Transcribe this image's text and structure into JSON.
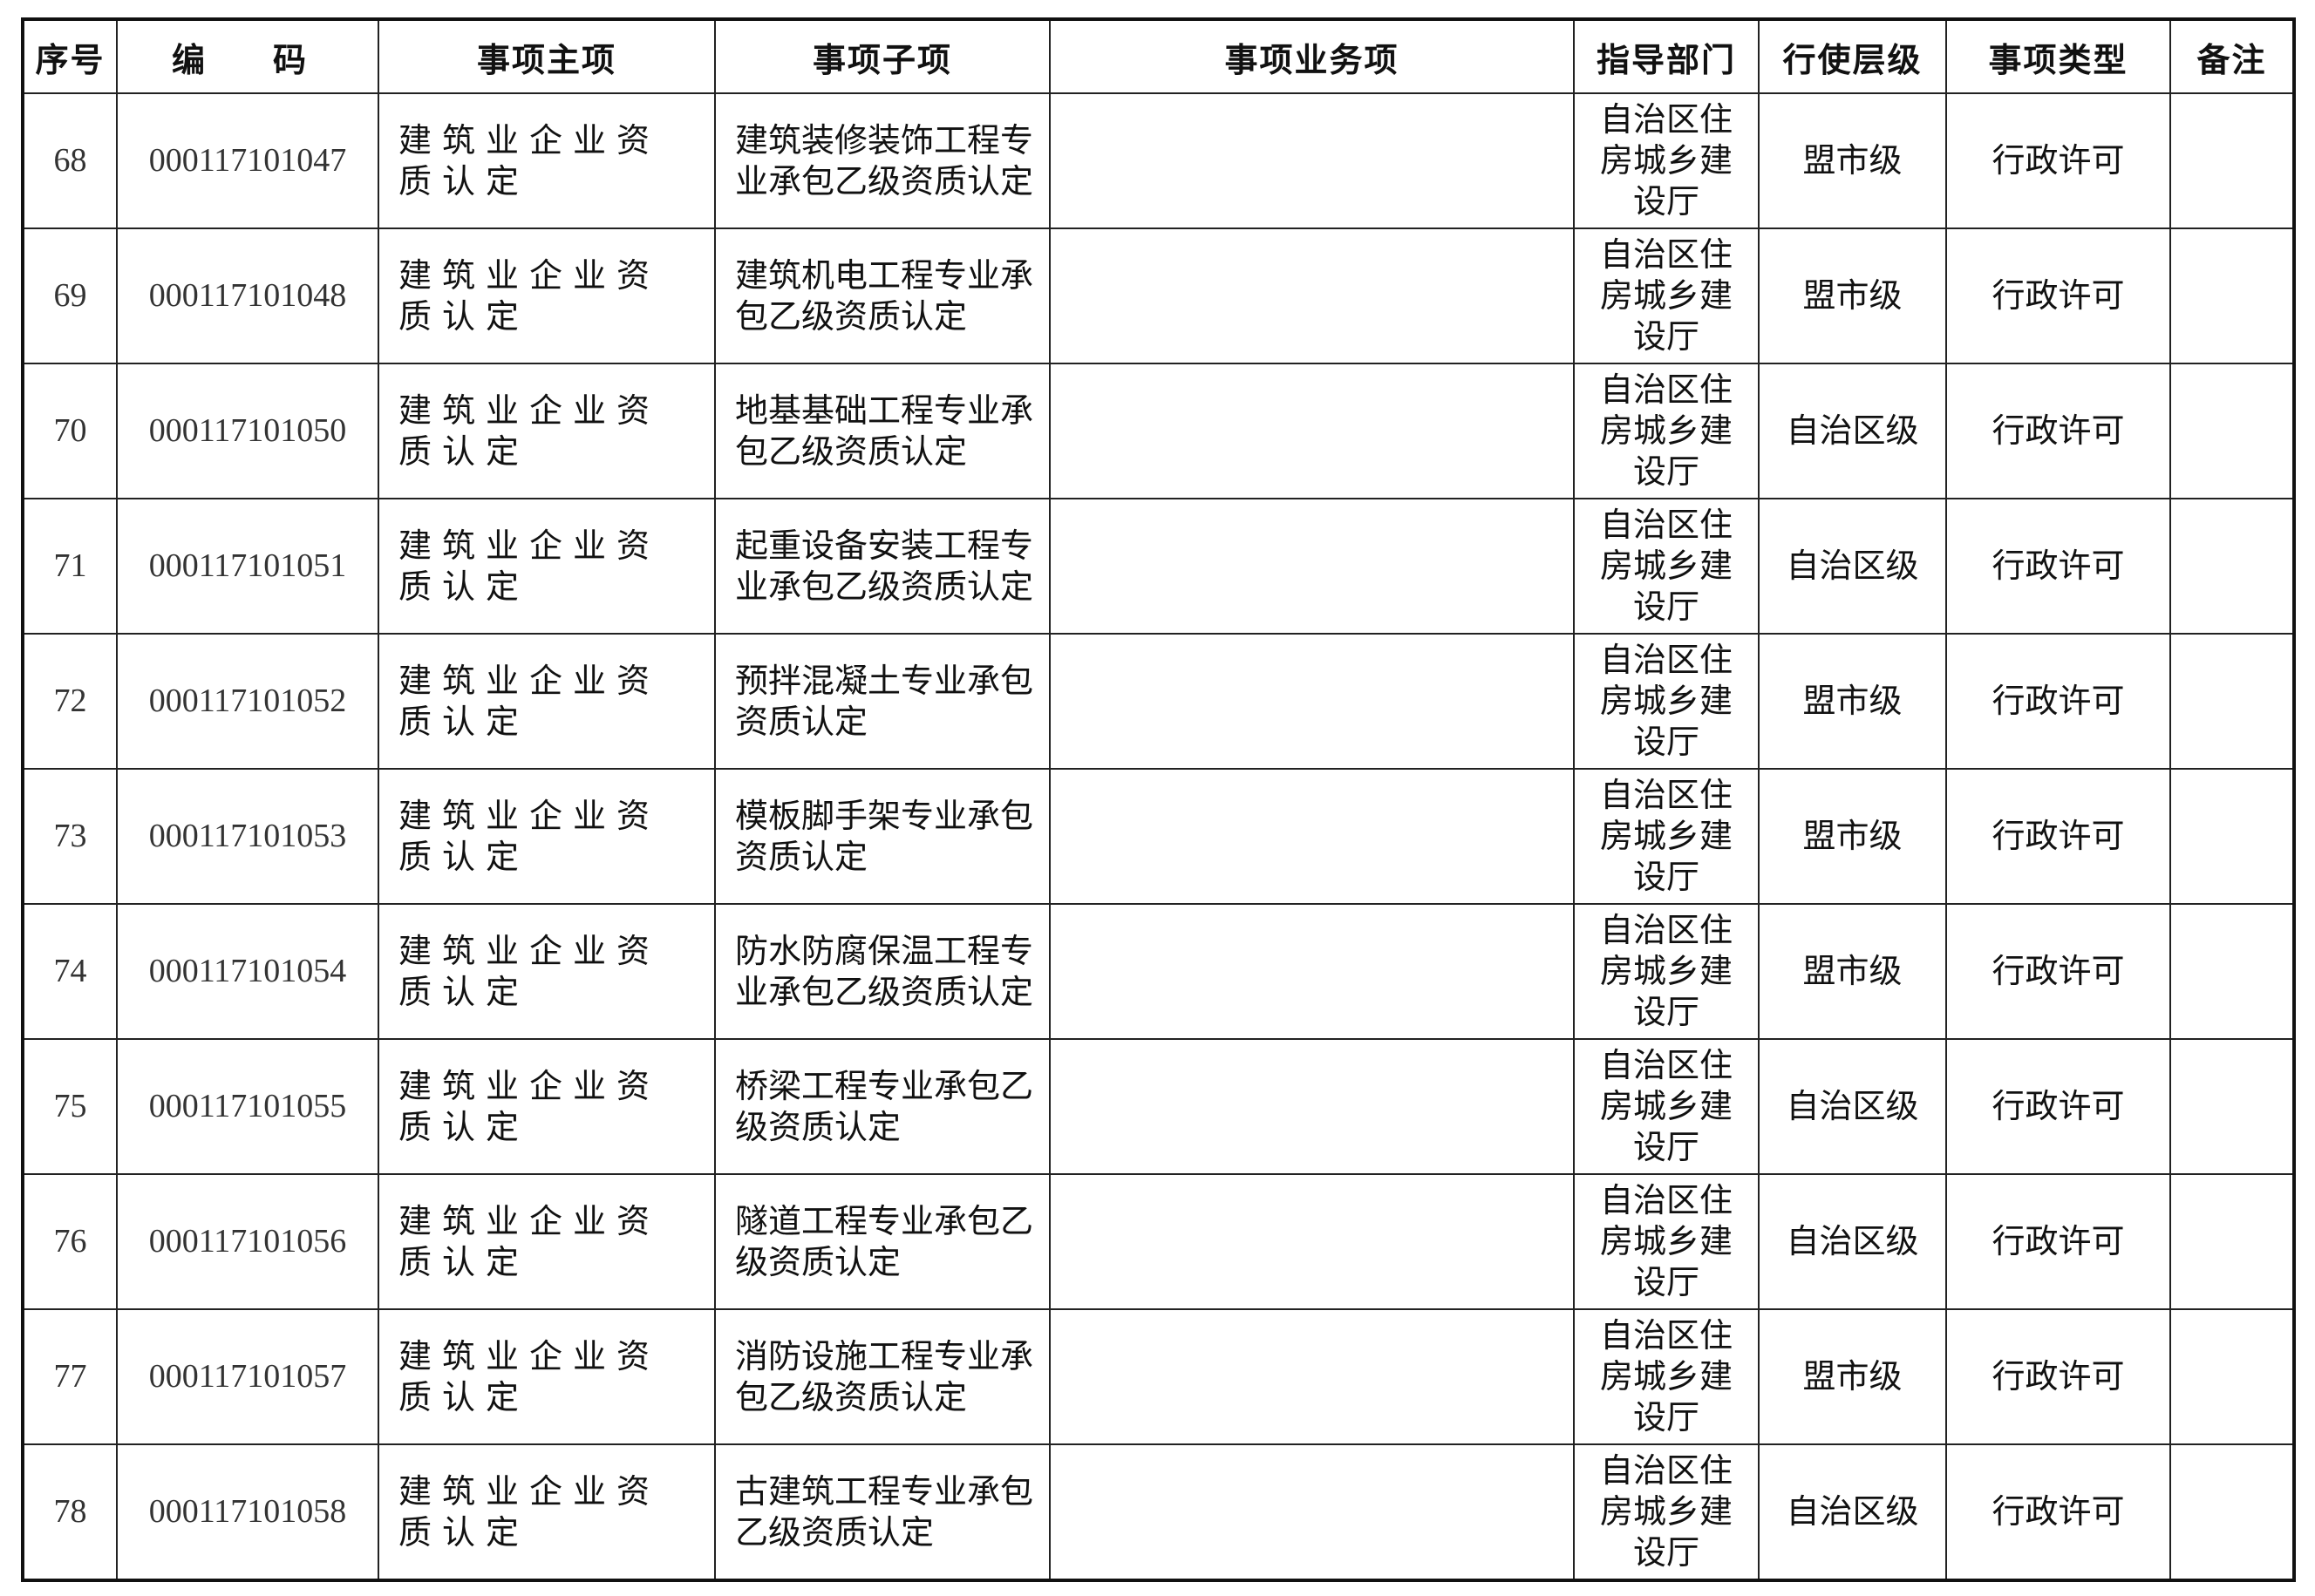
{
  "headers": [
    "序号",
    "编　码",
    "事项主项",
    "事项子项",
    "事项业务项",
    "指导部门",
    "行使层级",
    "事项类型",
    "备注"
  ],
  "rows": [
    {
      "no": "68",
      "code": "000117101047",
      "main": "建筑业企业资质认定",
      "sub": "建筑装修装饰工程专业承包乙级资质认定",
      "biz": "",
      "dept": "自治区住房城乡建设厅",
      "level": "盟市级",
      "type": "行政许可",
      "note": ""
    },
    {
      "no": "69",
      "code": "000117101048",
      "main": "建筑业企业资质认定",
      "sub": "建筑机电工程专业承包乙级资质认定",
      "biz": "",
      "dept": "自治区住房城乡建设厅",
      "level": "盟市级",
      "type": "行政许可",
      "note": ""
    },
    {
      "no": "70",
      "code": "000117101050",
      "main": "建筑业企业资质认定",
      "sub": "地基基础工程专业承包乙级资质认定",
      "biz": "",
      "dept": "自治区住房城乡建设厅",
      "level": "自治区级",
      "type": "行政许可",
      "note": ""
    },
    {
      "no": "71",
      "code": "000117101051",
      "main": "建筑业企业资质认定",
      "sub": "起重设备安装工程专业承包乙级资质认定",
      "biz": "",
      "dept": "自治区住房城乡建设厅",
      "level": "自治区级",
      "type": "行政许可",
      "note": ""
    },
    {
      "no": "72",
      "code": "000117101052",
      "main": "建筑业企业资质认定",
      "sub": "预拌混凝土专业承包资质认定",
      "biz": "",
      "dept": "自治区住房城乡建设厅",
      "level": "盟市级",
      "type": "行政许可",
      "note": ""
    },
    {
      "no": "73",
      "code": "000117101053",
      "main": "建筑业企业资质认定",
      "sub": "模板脚手架专业承包资质认定",
      "biz": "",
      "dept": "自治区住房城乡建设厅",
      "level": "盟市级",
      "type": "行政许可",
      "note": ""
    },
    {
      "no": "74",
      "code": "000117101054",
      "main": "建筑业企业资质认定",
      "sub": "防水防腐保温工程专业承包乙级资质认定",
      "biz": "",
      "dept": "自治区住房城乡建设厅",
      "level": "盟市级",
      "type": "行政许可",
      "note": ""
    },
    {
      "no": "75",
      "code": "000117101055",
      "main": "建筑业企业资质认定",
      "sub": "桥梁工程专业承包乙级资质认定",
      "biz": "",
      "dept": "自治区住房城乡建设厅",
      "level": "自治区级",
      "type": "行政许可",
      "note": ""
    },
    {
      "no": "76",
      "code": "000117101056",
      "main": "建筑业企业资质认定",
      "sub": "隧道工程专业承包乙级资质认定",
      "biz": "",
      "dept": "自治区住房城乡建设厅",
      "level": "自治区级",
      "type": "行政许可",
      "note": ""
    },
    {
      "no": "77",
      "code": "000117101057",
      "main": "建筑业企业资质认定",
      "sub": "消防设施工程专业承包乙级资质认定",
      "biz": "",
      "dept": "自治区住房城乡建设厅",
      "level": "盟市级",
      "type": "行政许可",
      "note": ""
    },
    {
      "no": "78",
      "code": "000117101058",
      "main": "建筑业企业资质认定",
      "sub": "古建筑工程专业承包乙级资质认定",
      "biz": "",
      "dept": "自治区住房城乡建设厅",
      "level": "自治区级",
      "type": "行政许可",
      "note": ""
    }
  ]
}
